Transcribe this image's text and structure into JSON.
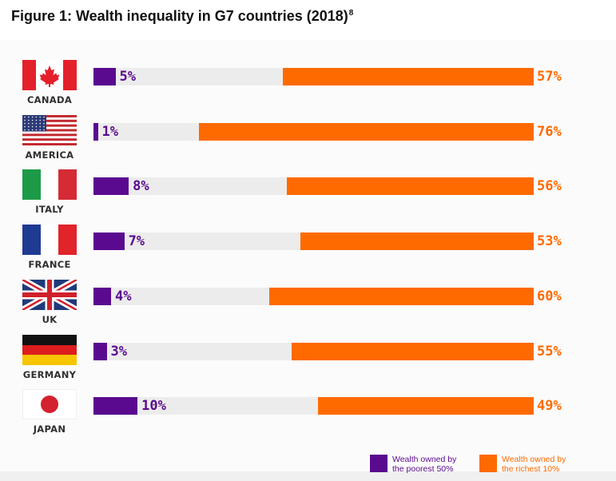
{
  "title": "Figure 1: Wealth inequality in G7 countries (2018)",
  "title_footnote": "8",
  "colors": {
    "poor": "#5a0a8f",
    "rich": "#ff6a00",
    "track": "#ececec"
  },
  "legend": {
    "poor_line1": "Wealth owned by",
    "poor_line2": "the poorest 50%",
    "rich_line1": "Wealth owned by",
    "rich_line2": "the richest 10%"
  },
  "chart_data": {
    "type": "bar",
    "title": "Figure 1: Wealth inequality in G7 countries (2018)",
    "categories": [
      "CANADA",
      "AMERICA",
      "ITALY",
      "FRANCE",
      "UK",
      "GERMANY",
      "JAPAN"
    ],
    "series": [
      {
        "name": "Wealth owned by the poorest 50%",
        "values": [
          5,
          1,
          8,
          7,
          4,
          3,
          10
        ]
      },
      {
        "name": "Wealth owned by the richest 10%",
        "values": [
          57,
          76,
          56,
          53,
          60,
          55,
          49
        ]
      }
    ],
    "value_labels": {
      "poor": [
        "5%",
        "1%",
        "8%",
        "7%",
        "4%",
        "3%",
        "10%"
      ],
      "rich": [
        "57%",
        "76%",
        "56%",
        "53%",
        "60%",
        "55%",
        "49%"
      ]
    },
    "flags": [
      "canada-flag-icon",
      "usa-flag-icon",
      "italy-flag-icon",
      "france-flag-icon",
      "uk-flag-icon",
      "germany-flag-icon",
      "japan-flag-icon"
    ],
    "xlim": [
      0,
      100
    ],
    "legend_position": "bottom-right",
    "grid": false
  }
}
